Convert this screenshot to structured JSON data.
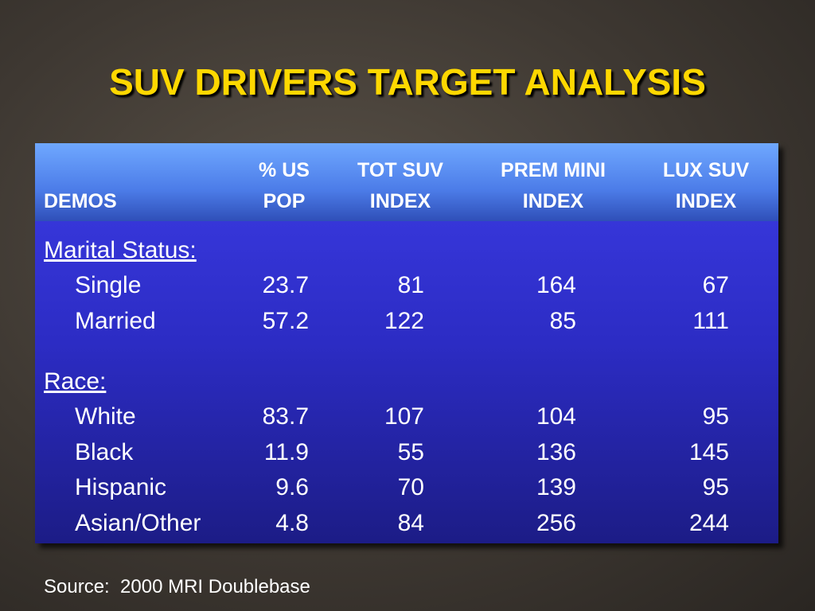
{
  "title": "SUV DRIVERS TARGET ANALYSIS",
  "table": {
    "columns": [
      [
        "DEMOS"
      ],
      [
        "% US",
        "POP"
      ],
      [
        "TOT SUV",
        "INDEX"
      ],
      [
        "PREM MINI",
        "INDEX"
      ],
      [
        "LUX SUV",
        "INDEX"
      ]
    ],
    "sections": [
      {
        "label": "Marital Status:",
        "rows": [
          {
            "label": "Single",
            "values": [
              23.7,
              81,
              164,
              67
            ]
          },
          {
            "label": "Married",
            "values": [
              57.2,
              122,
              85,
              111
            ]
          }
        ]
      },
      {
        "label": "Race:",
        "rows": [
          {
            "label": "White",
            "values": [
              83.7,
              107,
              104,
              95
            ]
          },
          {
            "label": "Black",
            "values": [
              11.9,
              55,
              136,
              145
            ]
          },
          {
            "label": "Hispanic",
            "values": [
              9.6,
              70,
              139,
              95
            ]
          },
          {
            "label": "Asian/Other",
            "values": [
              4.8,
              84,
              256,
              244
            ]
          }
        ]
      }
    ]
  },
  "source": "Source:  2000 MRI Doublebase"
}
